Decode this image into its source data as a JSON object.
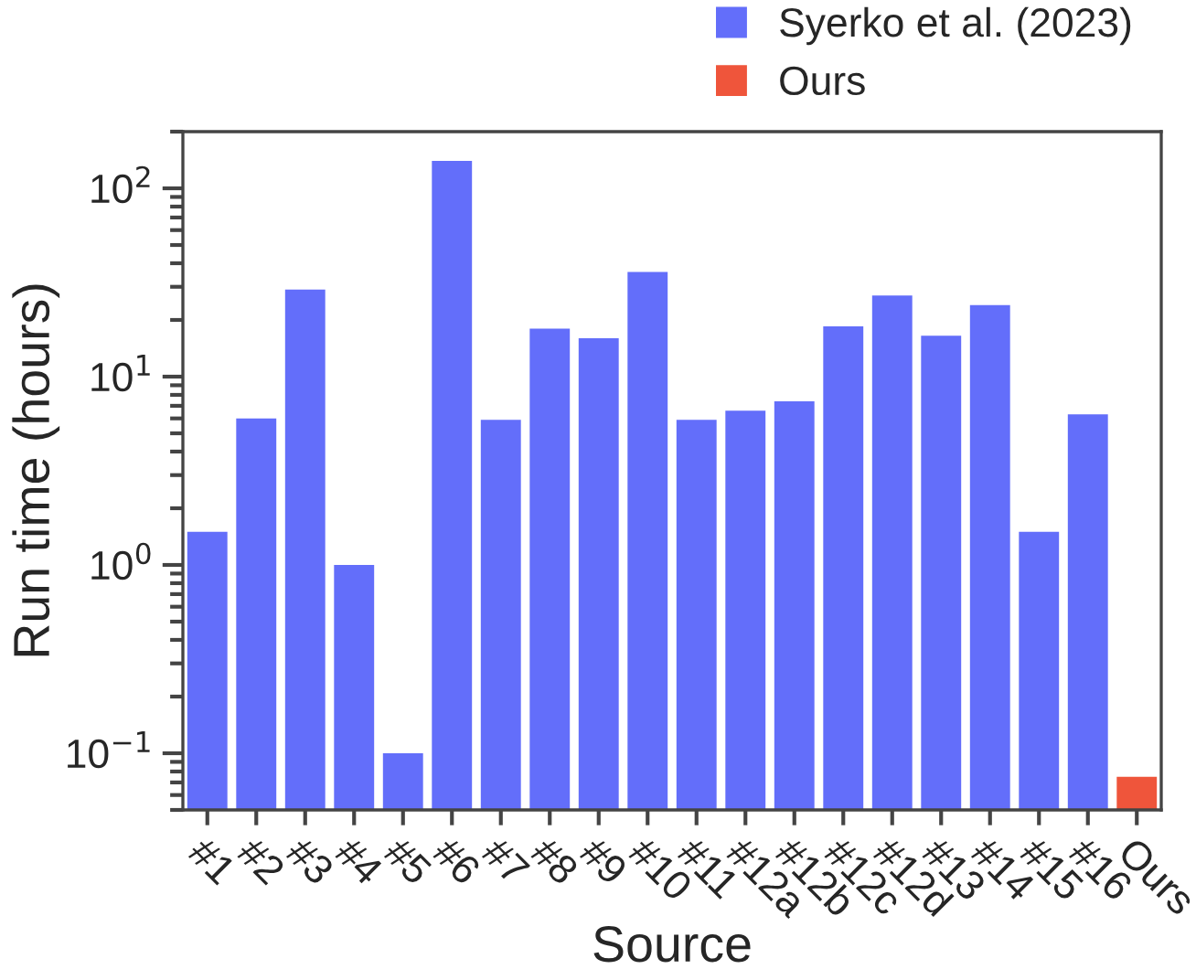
{
  "chart_data": {
    "type": "bar",
    "xlabel": "Source",
    "ylabel": "Run time (hours)",
    "categories": [
      "#1",
      "#2",
      "#3",
      "#4",
      "#5",
      "#6",
      "#7",
      "#8",
      "#9",
      "#10",
      "#11",
      "#12a",
      "#12b",
      "#12c",
      "#12d",
      "#13",
      "#14",
      "#15",
      "#16",
      "Ours"
    ],
    "series": [
      {
        "name": "Syerko et al. (2023)",
        "color": "#636efa",
        "values": [
          1.5,
          6.0,
          29,
          1.0,
          0.1,
          140,
          5.9,
          18,
          16,
          36,
          5.9,
          6.6,
          7.4,
          18.5,
          27,
          16.5,
          24,
          1.5,
          6.3,
          null
        ]
      },
      {
        "name": "Ours",
        "color": "#ef553b",
        "values": [
          null,
          null,
          null,
          null,
          null,
          null,
          null,
          null,
          null,
          null,
          null,
          null,
          null,
          null,
          null,
          null,
          null,
          null,
          null,
          0.075
        ]
      }
    ],
    "log": true,
    "ylim": [
      0.05,
      200
    ],
    "yticks": [
      {
        "value": 0.1,
        "label": "10$^{−1}$"
      },
      {
        "value": 1,
        "label": "10$^{0}$"
      },
      {
        "value": 10,
        "label": "10$^{1}$"
      },
      {
        "value": 100,
        "label": "10$^{2}$"
      }
    ],
    "grid": false,
    "legend": "top right"
  }
}
